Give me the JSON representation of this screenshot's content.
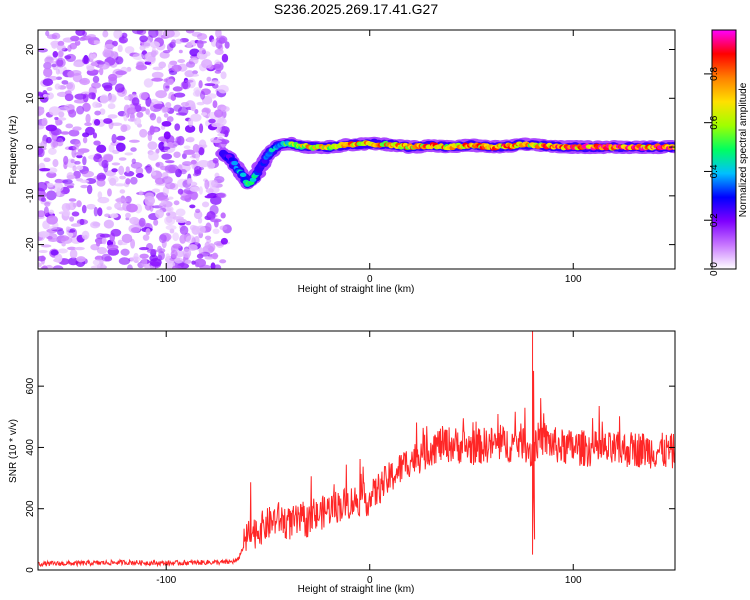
{
  "chart_data": [
    {
      "type": "heatmap",
      "title": "S236.2025.269.17.41.G27",
      "xlabel": "Height of straight line (km)",
      "ylabel": "Frequency (Hz)",
      "xlim": [
        -163,
        150
      ],
      "ylim": [
        -25,
        24
      ],
      "xticks": [
        -100,
        0,
        100
      ],
      "xtick_labels": [
        "-100",
        "0",
        "100"
      ],
      "yticks": [
        -20,
        -10,
        0,
        10,
        20
      ],
      "ytick_labels": [
        "-20",
        "-10",
        "0",
        "10",
        "20"
      ],
      "noise_region_x": [
        -163,
        -70
      ],
      "ridge": {
        "x": [
          -72,
          -68,
          -65,
          -62,
          -60,
          -58,
          -55,
          -52,
          -50,
          -45,
          -40,
          -35,
          -30,
          -20,
          -10,
          0,
          10,
          20,
          30,
          40,
          50,
          60,
          70,
          75,
          80,
          85,
          90,
          95,
          100,
          110,
          120,
          130,
          140,
          150
        ],
        "y": [
          -1.5,
          -2.5,
          -4.5,
          -6,
          -7.5,
          -7,
          -5,
          -3,
          -1.5,
          0.5,
          0.8,
          0.3,
          0,
          0,
          0.5,
          0.7,
          0.5,
          0,
          0.3,
          0,
          0.4,
          0,
          0.2,
          0.6,
          0.4,
          0.3,
          0.2,
          0,
          0,
          0,
          0,
          0,
          0,
          0
        ],
        "amplitude": [
          0.25,
          0.3,
          0.4,
          0.45,
          0.5,
          0.5,
          0.4,
          0.35,
          0.4,
          0.45,
          0.55,
          0.7,
          0.8,
          0.75,
          0.8,
          0.85,
          0.8,
          0.8,
          0.85,
          0.8,
          0.85,
          0.9,
          0.85,
          0.75,
          0.8,
          0.85,
          0.85,
          0.9,
          0.95,
          0.95,
          0.95,
          0.95,
          0.95,
          0.95
        ]
      },
      "colorbar": {
        "label": "Normalized spectral amplitude",
        "ticks": [
          0.0,
          0.2,
          0.4,
          0.6,
          0.8
        ],
        "tick_labels": [
          "0.0",
          "0.2",
          "0.4",
          "0.6",
          "0.8"
        ],
        "range": [
          0,
          0.98
        ],
        "stops": [
          "#ffffff",
          "#c878ff",
          "#7f00ff",
          "#0000ff",
          "#00c0ff",
          "#00ff60",
          "#a0ff00",
          "#ffe000",
          "#ff8000",
          "#ff0000",
          "#ff00ff"
        ]
      }
    },
    {
      "type": "line",
      "xlabel": "Height of straight line (km)",
      "ylabel": "SNR (10 * v/v)",
      "xlim": [
        -163,
        150
      ],
      "ylim": [
        0,
        780
      ],
      "xticks": [
        -100,
        0,
        100
      ],
      "xtick_labels": [
        "-100",
        "0",
        "100"
      ],
      "yticks": [
        0,
        200,
        400,
        600
      ],
      "ytick_labels": [
        "0",
        "200",
        "400",
        "600"
      ],
      "color": "#ff0000",
      "series": [
        {
          "name": "SNR",
          "x": [
            -163,
            -140,
            -120,
            -100,
            -80,
            -70,
            -65,
            -60,
            -55,
            -50,
            -45,
            -40,
            -35,
            -30,
            -25,
            -20,
            -15,
            -10,
            -5,
            0,
            5,
            10,
            15,
            20,
            25,
            30,
            35,
            40,
            50,
            60,
            70,
            75,
            78,
            80,
            82,
            85,
            90,
            95,
            100,
            110,
            120,
            130,
            140,
            150
          ],
          "values": [
            20,
            22,
            25,
            22,
            25,
            25,
            30,
            110,
            130,
            150,
            170,
            150,
            160,
            160,
            180,
            200,
            210,
            220,
            230,
            230,
            270,
            300,
            330,
            360,
            370,
            400,
            410,
            410,
            400,
            410,
            410,
            420,
            400,
            380,
            420,
            430,
            410,
            400,
            400,
            395,
            390,
            395,
            390,
            385
          ]
        }
      ],
      "spike": {
        "x": [
          80,
          80,
          80.5,
          81
        ],
        "values": [
          780,
          50,
          650,
          100
        ]
      }
    }
  ]
}
